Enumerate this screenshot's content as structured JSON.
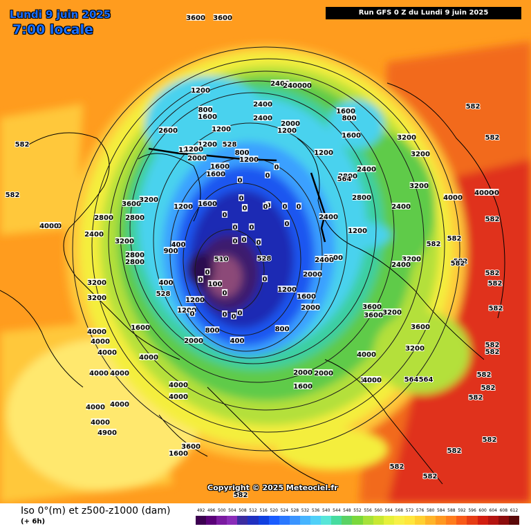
{
  "header": {
    "date": "Lundi 9 juin 2025",
    "time": "7:00 locale",
    "run": "Run GFS 0 Z du Lundi 9 juin 2025"
  },
  "copyright": "Copyright © 2025 Meteociel.fr",
  "legend": {
    "title": "Iso 0°(m) et z500-z1000 (dam)",
    "subtitle": "(+ 6h)",
    "scale_values": [
      "492",
      "496",
      "500",
      "504",
      "508",
      "512",
      "516",
      "520",
      "524",
      "528",
      "532",
      "536",
      "540",
      "544",
      "548",
      "552",
      "556",
      "560",
      "564",
      "568",
      "572",
      "576",
      "580",
      "584",
      "588",
      "592",
      "596",
      "600",
      "604",
      "608",
      "612"
    ],
    "scale_colors": [
      "#3c0050",
      "#5a0078",
      "#7a1aa0",
      "#8a2cb8",
      "#3c2ca0",
      "#2030c0",
      "#1040e0",
      "#1a5cff",
      "#2a78ff",
      "#3a94ff",
      "#46b4ff",
      "#50d0f8",
      "#58e6d8",
      "#46dca0",
      "#5ad264",
      "#7ad83c",
      "#a6e23a",
      "#c8e832",
      "#e6f03a",
      "#f8f046",
      "#ffe63c",
      "#ffd030",
      "#ffb428",
      "#ff9820",
      "#ff7c1c",
      "#f85a18",
      "#e63c14",
      "#d21e10",
      "#b41410",
      "#8c0c0c",
      "#5a0808"
    ]
  },
  "map_labels": [
    {
      "t": "3600",
      "c": "iso"
    },
    {
      "t": "3600",
      "c": "iso"
    },
    {
      "t": "2400",
      "c": "iso"
    },
    {
      "t": "240000",
      "c": "iso"
    },
    {
      "t": "1200",
      "c": "iso"
    },
    {
      "t": "800",
      "c": "iso"
    },
    {
      "t": "1600",
      "c": "iso"
    },
    {
      "t": "2400",
      "c": "iso"
    },
    {
      "t": "1600",
      "c": "iso"
    },
    {
      "t": "800",
      "c": "iso"
    },
    {
      "t": "2600",
      "c": "iso"
    },
    {
      "t": "1200",
      "c": "iso"
    },
    {
      "t": "2400",
      "c": "iso"
    },
    {
      "t": "2000",
      "c": "iso"
    },
    {
      "t": "1200",
      "c": "iso"
    },
    {
      "t": "1200",
      "c": "iso"
    },
    {
      "t": "1200",
      "c": "iso"
    },
    {
      "t": "528",
      "c": "dam"
    },
    {
      "t": "1200",
      "c": "iso"
    },
    {
      "t": "800",
      "c": "iso"
    },
    {
      "t": "1200",
      "c": "iso"
    },
    {
      "t": "2000",
      "c": "iso"
    },
    {
      "t": "1600",
      "c": "iso"
    },
    {
      "t": "1600",
      "c": "iso"
    },
    {
      "t": "1200",
      "c": "iso"
    },
    {
      "t": "1600",
      "c": "iso"
    },
    {
      "t": "3600",
      "c": "iso"
    },
    {
      "t": "3200",
      "c": "iso"
    },
    {
      "t": "2800",
      "c": "iso"
    },
    {
      "t": "2800",
      "c": "iso"
    },
    {
      "t": "2400",
      "c": "iso"
    },
    {
      "t": "3200",
      "c": "iso"
    },
    {
      "t": "4000",
      "c": "iso"
    },
    {
      "t": "2800",
      "c": "iso"
    },
    {
      "t": "2800",
      "c": "iso"
    },
    {
      "t": "900",
      "c": "iso"
    },
    {
      "t": "400",
      "c": "iso"
    },
    {
      "t": "510",
      "c": "dam"
    },
    {
      "t": "528",
      "c": "dam"
    },
    {
      "t": "100",
      "c": "iso"
    },
    {
      "t": "400",
      "c": "iso"
    },
    {
      "t": "528",
      "c": "dam"
    },
    {
      "t": "3200",
      "c": "iso"
    },
    {
      "t": "3200",
      "c": "iso"
    },
    {
      "t": "1200",
      "c": "iso"
    },
    {
      "t": "1200",
      "c": "iso"
    },
    {
      "t": "1600",
      "c": "iso"
    },
    {
      "t": "800",
      "c": "iso"
    },
    {
      "t": "2000",
      "c": "iso"
    },
    {
      "t": "1600",
      "c": "iso"
    },
    {
      "t": "2000",
      "c": "iso"
    },
    {
      "t": "1200",
      "c": "iso"
    },
    {
      "t": "800",
      "c": "iso"
    },
    {
      "t": "400",
      "c": "iso"
    },
    {
      "t": "4000",
      "c": "iso"
    },
    {
      "t": "4000",
      "c": "iso"
    },
    {
      "t": "4000",
      "c": "iso"
    },
    {
      "t": "4000",
      "c": "iso"
    },
    {
      "t": "4000",
      "c": "iso"
    },
    {
      "t": "4000",
      "c": "iso"
    },
    {
      "t": "4000",
      "c": "iso"
    },
    {
      "t": "4000",
      "c": "iso"
    },
    {
      "t": "4000",
      "c": "iso"
    },
    {
      "t": "4000",
      "c": "iso"
    },
    {
      "t": "4000",
      "c": "iso"
    },
    {
      "t": "4000",
      "c": "iso"
    },
    {
      "t": "4000",
      "c": "iso"
    },
    {
      "t": "3200",
      "c": "iso"
    },
    {
      "t": "3600",
      "c": "iso"
    },
    {
      "t": "1600",
      "c": "iso"
    },
    {
      "t": "2000",
      "c": "iso"
    },
    {
      "t": "2000",
      "c": "iso"
    },
    {
      "t": "1600",
      "c": "iso"
    },
    {
      "t": "2800",
      "c": "iso"
    },
    {
      "t": "2400",
      "c": "iso"
    },
    {
      "t": "2400",
      "c": "iso"
    },
    {
      "t": "2800",
      "c": "iso"
    },
    {
      "t": "3200",
      "c": "iso"
    },
    {
      "t": "3200",
      "c": "iso"
    },
    {
      "t": "2400",
      "c": "iso"
    },
    {
      "t": "3200",
      "c": "iso"
    },
    {
      "t": "4000",
      "c": "iso"
    },
    {
      "t": "4000",
      "c": "iso"
    },
    {
      "t": "3200",
      "c": "iso"
    },
    {
      "t": "2400",
      "c": "iso"
    },
    {
      "t": "3600",
      "c": "iso"
    },
    {
      "t": "3600",
      "c": "iso"
    },
    {
      "t": "3200",
      "c": "iso"
    },
    {
      "t": "3600",
      "c": "iso"
    },
    {
      "t": "3200",
      "c": "iso"
    },
    {
      "t": "4000",
      "c": "iso"
    },
    {
      "t": "4000",
      "c": "iso"
    },
    {
      "t": "1600",
      "c": "iso"
    },
    {
      "t": "1200",
      "c": "iso"
    },
    {
      "t": "2000",
      "c": "iso"
    },
    {
      "t": "1200",
      "c": "iso"
    },
    {
      "t": "2800",
      "c": "iso"
    },
    {
      "t": "2400",
      "c": "iso"
    },
    {
      "t": "582",
      "c": "dam"
    },
    {
      "t": "582",
      "c": "dam"
    },
    {
      "t": "582",
      "c": "dam"
    },
    {
      "t": "582",
      "c": "dam"
    },
    {
      "t": "582",
      "c": "dam"
    },
    {
      "t": "582",
      "c": "dam"
    },
    {
      "t": "582",
      "c": "dam"
    },
    {
      "t": "582",
      "c": "dam"
    },
    {
      "t": "582",
      "c": "dam"
    },
    {
      "t": "582",
      "c": "dam"
    },
    {
      "t": "582",
      "c": "dam"
    },
    {
      "t": "582",
      "c": "dam"
    },
    {
      "t": "582",
      "c": "dam"
    },
    {
      "t": "582",
      "c": "dam"
    },
    {
      "t": "582",
      "c": "dam"
    },
    {
      "t": "582",
      "c": "dam"
    },
    {
      "t": "582",
      "c": "dam"
    },
    {
      "t": "582",
      "c": "dam"
    },
    {
      "t": "582",
      "c": "dam"
    },
    {
      "t": "582",
      "c": "dam"
    },
    {
      "t": "564",
      "c": "dam"
    },
    {
      "t": "564",
      "c": "dam"
    },
    {
      "t": "582",
      "c": "dam"
    },
    {
      "t": "564",
      "c": "dam"
    },
    {
      "t": "4900",
      "c": "iso"
    },
    {
      "t": "582",
      "c": "dam"
    },
    {
      "t": "0",
      "c": "iso"
    },
    {
      "t": "0",
      "c": "iso"
    },
    {
      "t": "0",
      "c": "iso"
    },
    {
      "t": "0",
      "c": "iso"
    },
    {
      "t": "0",
      "c": "iso"
    },
    {
      "t": "0",
      "c": "iso"
    },
    {
      "t": "0",
      "c": "iso"
    },
    {
      "t": "0",
      "c": "iso"
    },
    {
      "t": "0",
      "c": "iso"
    },
    {
      "t": "0",
      "c": "iso"
    },
    {
      "t": "0",
      "c": "iso"
    },
    {
      "t": "0",
      "c": "iso"
    },
    {
      "t": "0",
      "c": "iso"
    },
    {
      "t": "0",
      "c": "iso"
    },
    {
      "t": "0",
      "c": "iso"
    },
    {
      "t": "0",
      "c": "iso"
    },
    {
      "t": "0",
      "c": "iso"
    },
    {
      "t": "0",
      "c": "iso"
    },
    {
      "t": "0",
      "c": "iso"
    },
    {
      "t": "0",
      "c": "iso"
    },
    {
      "t": "0",
      "c": "iso"
    },
    {
      "t": "0",
      "c": "iso"
    },
    {
      "t": "0",
      "c": "iso"
    },
    {
      "t": "0",
      "c": "iso"
    },
    {
      "t": "0",
      "c": "iso"
    }
  ],
  "colors": {
    "outer_orange": "#ff9c1e",
    "deep_orange": "#f26a1a",
    "red_hot": "#e0301a",
    "yellow_orange": "#ffc83a",
    "pale_yellow": "#ffe86e",
    "yellow": "#f4ee3c",
    "lime": "#b4e03a",
    "green": "#5ecb4a",
    "teal": "#3ccfa0",
    "cyan": "#4ad2ee",
    "light_blue": "#3aa0ff",
    "blue": "#1a56f0",
    "deep_blue": "#1a2cb4",
    "core": "#3c1e6e",
    "core_dark": "#2a1050",
    "mauve": "#8c4a78"
  }
}
